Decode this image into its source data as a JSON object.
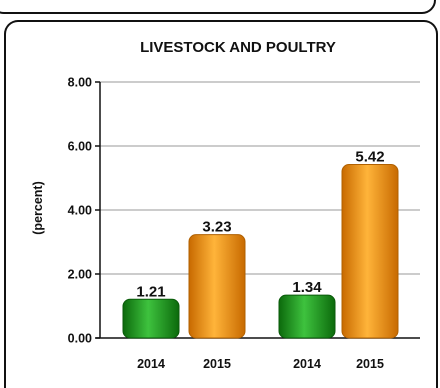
{
  "chart_data": {
    "type": "bar",
    "title": "LIVESTOCK AND POULTRY",
    "ylabel": "(percent)",
    "xlabel": "",
    "ylim": [
      0,
      8
    ],
    "yticks": [
      "0.00",
      "2.00",
      "4.00",
      "6.00",
      "8.00"
    ],
    "grid": true,
    "legend": "none",
    "categories": [
      "2014",
      "2015",
      "2014",
      "2015"
    ],
    "values": [
      1.21,
      3.23,
      1.34,
      5.42
    ],
    "data_labels": [
      "1.21",
      "3.23",
      "1.34",
      "5.42"
    ],
    "colors": [
      "#1a9a1a",
      "#f0920a",
      "#1a9a1a",
      "#f0920a"
    ]
  }
}
